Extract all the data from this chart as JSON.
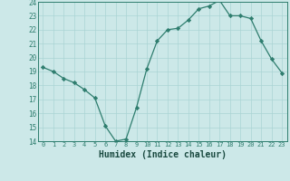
{
  "x": [
    0,
    1,
    2,
    3,
    4,
    5,
    6,
    7,
    8,
    9,
    10,
    11,
    12,
    13,
    14,
    15,
    16,
    17,
    18,
    19,
    20,
    21,
    22,
    23
  ],
  "y": [
    19.3,
    19.0,
    18.5,
    18.2,
    17.7,
    17.1,
    15.1,
    14.0,
    14.15,
    16.4,
    19.2,
    21.2,
    22.0,
    22.1,
    22.7,
    23.5,
    23.7,
    24.1,
    23.0,
    23.0,
    22.8,
    21.2,
    19.9,
    18.9
  ],
  "xlabel": "Humidex (Indice chaleur)",
  "ylim": [
    14,
    24
  ],
  "yticks": [
    14,
    15,
    16,
    17,
    18,
    19,
    20,
    21,
    22,
    23,
    24
  ],
  "xticks": [
    0,
    1,
    2,
    3,
    4,
    5,
    6,
    7,
    8,
    9,
    10,
    11,
    12,
    13,
    14,
    15,
    16,
    17,
    18,
    19,
    20,
    21,
    22,
    23
  ],
  "line_color": "#2e7d6e",
  "marker": "D",
  "marker_size": 2.2,
  "bg_color": "#cce8e8",
  "grid_color": "#aad4d4",
  "spine_color": "#2e7d6e",
  "tick_color": "#2e7d6e",
  "label_color": "#1a4a40"
}
